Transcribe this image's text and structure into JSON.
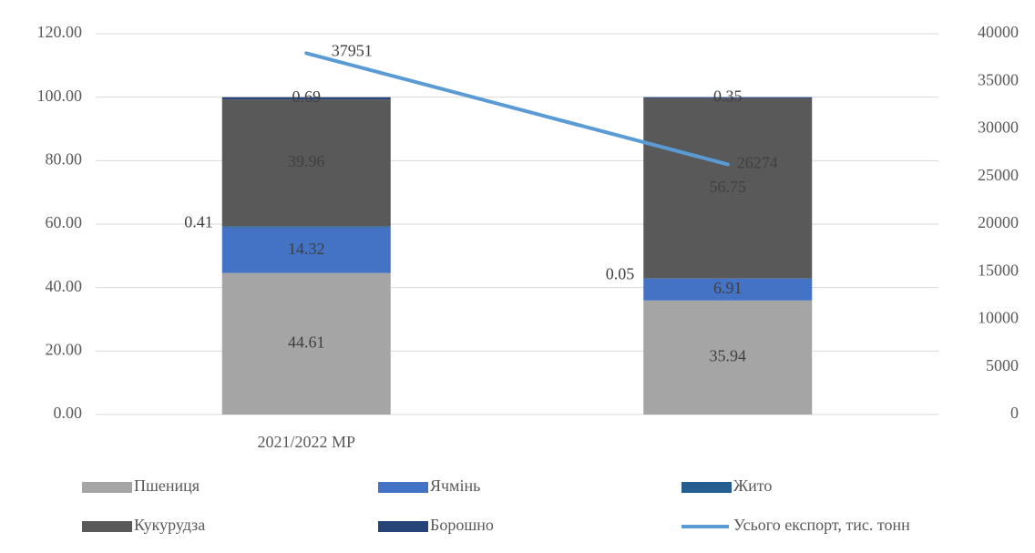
{
  "chart_data": {
    "type": "bar",
    "stacked": true,
    "categories": [
      "2021/2022 МР",
      null
    ],
    "series": [
      {
        "name": "Пшениця",
        "color": "#a5a5a5",
        "values": [
          44.61,
          35.94
        ]
      },
      {
        "name": "Ячмінь",
        "color": "#4472c4",
        "values": [
          14.32,
          6.91
        ]
      },
      {
        "name": "Жито",
        "color": "#255e91",
        "values": [
          0.41,
          0.05
        ]
      },
      {
        "name": "Кукурудза",
        "color": "#595959",
        "values": [
          39.96,
          56.75
        ]
      },
      {
        "name": "Борошно",
        "color": "#264478",
        "values": [
          0.69,
          0.35
        ]
      },
      {
        "name": "Усього експорт, тис. тонн",
        "color": "#5b9bd5",
        "type": "line",
        "axis": "y2",
        "values": [
          37951,
          26274
        ]
      }
    ],
    "ylim": [
      0,
      120
    ],
    "yticks": [
      {
        "value": 0,
        "label": "0.00"
      },
      {
        "value": 20,
        "label": "20.00"
      },
      {
        "value": 40,
        "label": "40.00"
      },
      {
        "value": 60,
        "label": "60.00"
      },
      {
        "value": 80,
        "label": "80.00"
      },
      {
        "value": 100,
        "label": "100.00"
      },
      {
        "value": 120,
        "label": "120.00"
      }
    ],
    "y2lim": [
      0,
      40000
    ],
    "y2ticks": [
      0,
      5000,
      10000,
      15000,
      20000,
      25000,
      30000,
      35000,
      40000
    ],
    "grid": true,
    "legend": "bottom"
  }
}
